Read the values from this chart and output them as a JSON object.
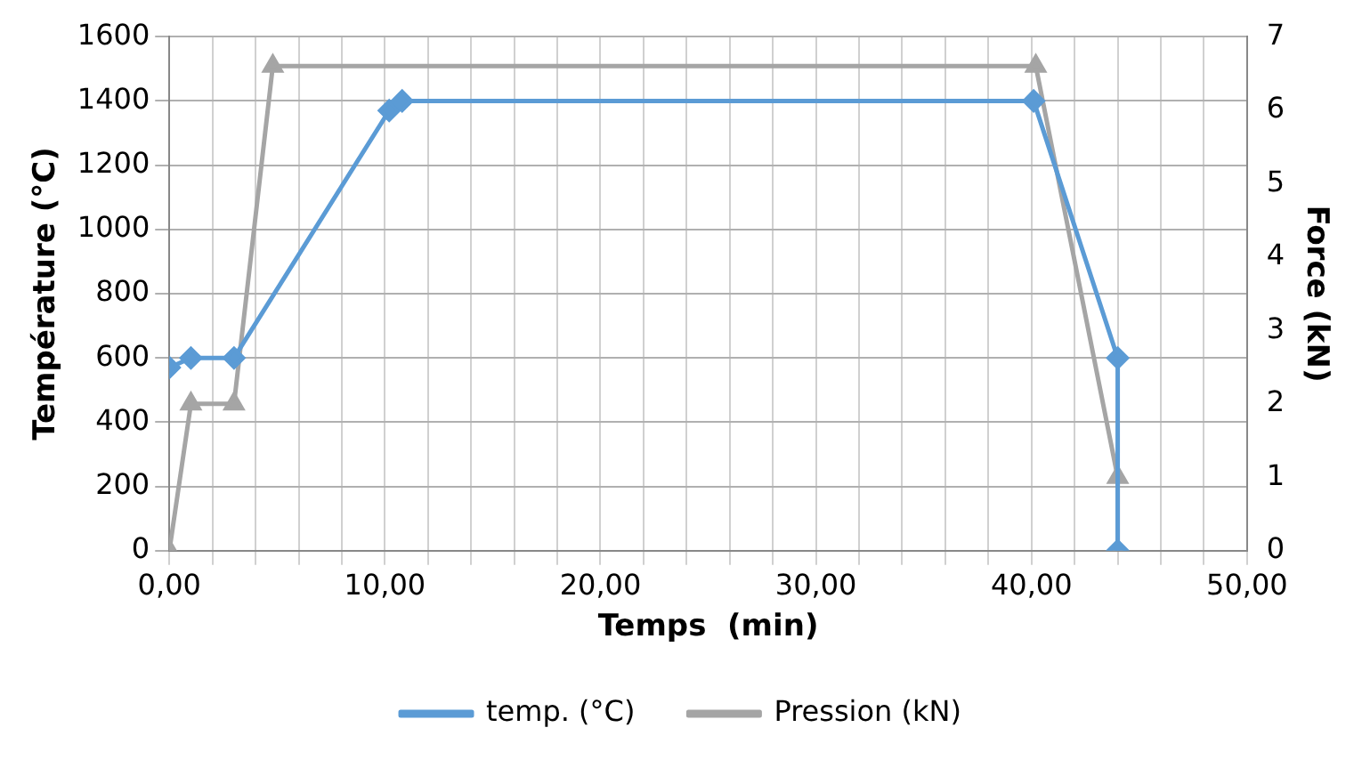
{
  "chart_data": {
    "type": "line",
    "xlabel": "Temps  (min)",
    "ylabel": "Température (°C)",
    "y2label": "Force (kN)",
    "series": [
      {
        "name": "temp. (°C)",
        "color": "#5b9bd5",
        "marker": "diamond",
        "x": [
          0,
          1,
          3,
          10.2,
          10.8,
          40.1,
          44,
          44
        ],
        "values": [
          570,
          600,
          600,
          1370,
          1400,
          1400,
          600,
          0
        ]
      },
      {
        "name": "Pression (kN)",
        "color": "#a5a5a5",
        "marker": "triangle",
        "axis": "y2",
        "x": [
          0,
          1,
          3,
          4.8,
          40.2,
          44,
          44
        ],
        "values": [
          0,
          2,
          2,
          6.6,
          6.6,
          1,
          0
        ]
      }
    ],
    "xlim": [
      0,
      50
    ],
    "xticks": [
      {
        "value": 0,
        "label": "0,00"
      },
      {
        "value": 2,
        "label": null
      },
      {
        "value": 4,
        "label": null
      },
      {
        "value": 6,
        "label": null
      },
      {
        "value": 8,
        "label": null
      },
      {
        "value": 10,
        "label": "10,00"
      },
      {
        "value": 12,
        "label": null
      },
      {
        "value": 14,
        "label": null
      },
      {
        "value": 16,
        "label": null
      },
      {
        "value": 18,
        "label": null
      },
      {
        "value": 20,
        "label": "20,00"
      },
      {
        "value": 22,
        "label": null
      },
      {
        "value": 24,
        "label": null
      },
      {
        "value": 26,
        "label": null
      },
      {
        "value": 28,
        "label": null
      },
      {
        "value": 30,
        "label": "30,00"
      },
      {
        "value": 32,
        "label": null
      },
      {
        "value": 34,
        "label": null
      },
      {
        "value": 36,
        "label": null
      },
      {
        "value": 38,
        "label": null
      },
      {
        "value": 40,
        "label": "40,00"
      },
      {
        "value": 42,
        "label": null
      },
      {
        "value": 44,
        "label": null
      },
      {
        "value": 46,
        "label": null
      },
      {
        "value": 48,
        "label": null
      },
      {
        "value": 50,
        "label": "50,00"
      }
    ],
    "ylim": [
      0,
      1600
    ],
    "yticks": [
      0,
      200,
      400,
      600,
      800,
      1000,
      1200,
      1400,
      1600
    ],
    "y2lim": [
      0,
      7
    ],
    "y2ticks": [
      0,
      1,
      2,
      3,
      4,
      5,
      6,
      7
    ],
    "grid": true,
    "legend": "bottom",
    "line_style": "solid"
  }
}
